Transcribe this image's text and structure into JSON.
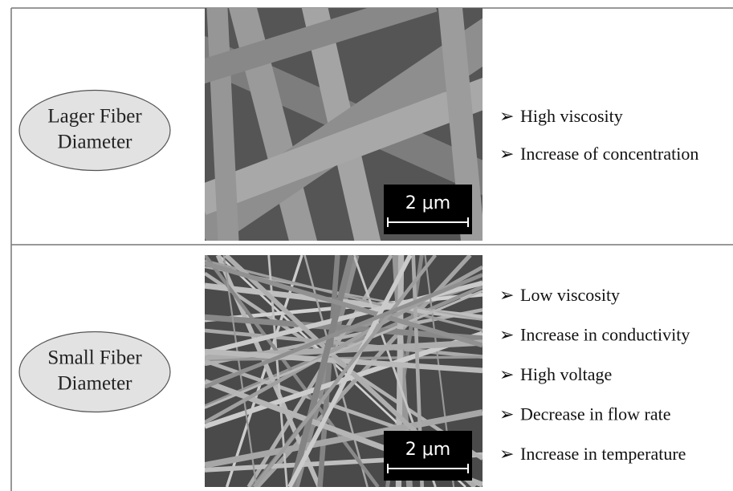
{
  "rows": [
    {
      "label_lines": [
        "Lager Fiber",
        "Diameter"
      ],
      "scale_bar": "2 μm",
      "items": [
        "High viscosity",
        "Increase of concentration"
      ]
    },
    {
      "label_lines": [
        "Small Fiber",
        "Diameter"
      ],
      "scale_bar": "2 μm",
      "items": [
        "Low viscosity",
        "Increase in conductivity",
        "High voltage",
        "Decrease in flow rate",
        "Increase in temperature"
      ]
    }
  ]
}
